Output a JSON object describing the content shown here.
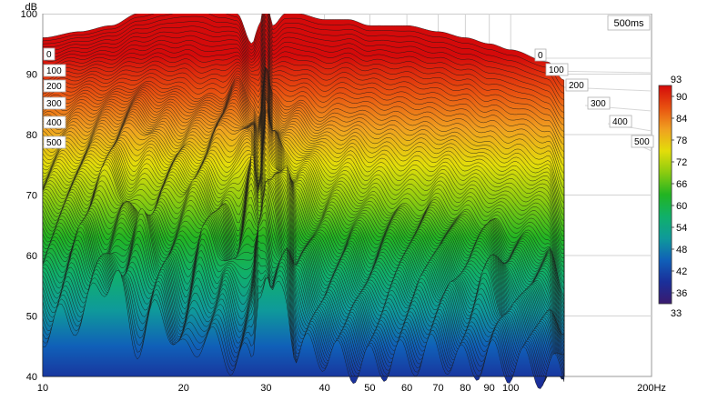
{
  "chart_data": {
    "type": "waterfall",
    "corner_label": "500ms",
    "ylabel": "dB",
    "xlabel": "Hz",
    "x_scale": "log",
    "xlim": [
      10,
      200
    ],
    "ylim": [
      40,
      100
    ],
    "x_ticks": [
      10,
      20,
      30,
      40,
      50,
      60,
      70,
      80,
      90,
      100,
      200
    ],
    "x_tick_labels": [
      "10",
      "20",
      "30",
      "40",
      "50",
      "60",
      "70",
      "80",
      "90",
      "100",
      "200Hz"
    ],
    "y_ticks": [
      40,
      50,
      60,
      70,
      80,
      90,
      100
    ],
    "time_labels_ms": [
      "0",
      "100",
      "200",
      "300",
      "400",
      "500"
    ],
    "colorbar": {
      "min": 33,
      "max": 93,
      "ticks": [
        36,
        42,
        48,
        54,
        60,
        66,
        72,
        78,
        84,
        90
      ],
      "colors": [
        "#3a1a6e",
        "#1a2f9a",
        "#1060b8",
        "#0f9a9a",
        "#10b06a",
        "#22b422",
        "#8acb10",
        "#e3dd0a",
        "#f0a020",
        "#e85010",
        "#d40a0a"
      ]
    },
    "series": [
      {
        "time_ms": 0,
        "x": [
          10,
          12,
          14,
          16,
          18,
          20,
          22,
          24,
          26,
          28,
          29,
          30,
          31,
          33,
          35,
          40,
          45,
          50,
          60,
          70,
          80,
          90,
          100,
          120,
          130
        ],
        "y": [
          87,
          88,
          89,
          91,
          92,
          93,
          93,
          92,
          91,
          86,
          89,
          94,
          89,
          91,
          91,
          90,
          90,
          89,
          89,
          88,
          87,
          86,
          85,
          83,
          80
        ]
      },
      {
        "time_ms": 100,
        "x": [
          10,
          12,
          14,
          16,
          18,
          20,
          22,
          24,
          26,
          28,
          29,
          30,
          31,
          33,
          35,
          40,
          45,
          50,
          60,
          70,
          80,
          90,
          100,
          120,
          130
        ],
        "y": [
          79,
          80,
          80,
          81,
          81,
          80,
          79,
          79,
          82,
          78,
          76,
          84,
          79,
          78,
          78,
          76,
          77,
          76,
          75,
          74,
          73,
          71,
          70,
          68,
          62
        ]
      },
      {
        "time_ms": 200,
        "x": [
          10,
          12,
          14,
          16,
          18,
          20,
          22,
          24,
          26,
          28,
          29,
          30,
          31,
          33,
          35,
          40,
          45,
          50,
          60,
          70,
          80,
          90,
          100,
          120,
          130
        ],
        "y": [
          71,
          72,
          74,
          76,
          73,
          72,
          73,
          75,
          76,
          74,
          70,
          82,
          75,
          71,
          71,
          67,
          66,
          64,
          62,
          63,
          61,
          60,
          58,
          57,
          47
        ]
      },
      {
        "time_ms": 300,
        "x": [
          10,
          12,
          14,
          16,
          18,
          20,
          22,
          24,
          26,
          28,
          29,
          30,
          31,
          33,
          35,
          40,
          45,
          50,
          60,
          70,
          80,
          90,
          100,
          120,
          130
        ],
        "y": [
          64,
          66,
          70,
          62,
          66,
          68,
          67,
          64,
          61,
          73,
          65,
          74,
          73,
          70,
          62,
          58,
          57,
          55,
          57,
          57,
          55,
          58,
          52,
          50,
          42
        ]
      },
      {
        "time_ms": 400,
        "x": [
          10,
          12,
          14,
          16,
          18,
          20,
          22,
          24,
          26,
          28,
          29,
          30,
          31,
          33,
          35,
          40,
          45,
          50,
          60,
          70,
          80,
          90,
          100,
          120,
          130
        ],
        "y": [
          57,
          61,
          56,
          64,
          58,
          55,
          61,
          60,
          55,
          60,
          64,
          68,
          66,
          61,
          54,
          50,
          50,
          48,
          52,
          53,
          50,
          54,
          48,
          46,
          40
        ]
      },
      {
        "time_ms": 500,
        "x": [
          10,
          12,
          14,
          16,
          18,
          20,
          22,
          24,
          26,
          28,
          29,
          30,
          31,
          33,
          35,
          40,
          45,
          50,
          60,
          70,
          80,
          90,
          100,
          120,
          130
        ],
        "y": [
          48,
          50,
          57,
          46,
          51,
          43,
          47,
          44,
          43,
          42,
          56,
          58,
          52,
          54,
          44,
          44,
          42,
          42,
          43,
          44,
          42,
          43,
          42,
          41,
          40
        ]
      }
    ]
  }
}
